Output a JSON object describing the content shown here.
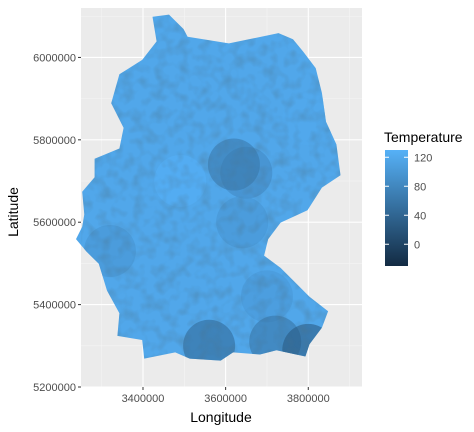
{
  "chart_data": {
    "type": "heatmap",
    "subtype": "raster map",
    "title": "",
    "xlabel": "Longitude",
    "ylabel": "Latitude",
    "xlim": [
      3250000,
      3930000
    ],
    "ylim": [
      5200000,
      6120000
    ],
    "x_ticks": [
      3400000,
      3600000,
      3800000
    ],
    "x_tick_labels": [
      "3400000",
      "3600000",
      "3800000"
    ],
    "y_ticks": [
      5200000,
      5400000,
      5600000,
      5800000,
      6000000
    ],
    "y_tick_labels": [
      "5200000",
      "5400000",
      "5600000",
      "5800000",
      "6000000"
    ],
    "grid": true,
    "panel_background": "#ebebeb",
    "region_outline": [
      [
        3423000,
        6099000
      ],
      [
        3463000,
        6104000
      ],
      [
        3498000,
        6069000
      ],
      [
        3508000,
        6050000
      ],
      [
        3608000,
        6034000
      ],
      [
        3728000,
        6059000
      ],
      [
        3763000,
        6044000
      ],
      [
        3788000,
        6014000
      ],
      [
        3818000,
        5974000
      ],
      [
        3833000,
        5914000
      ],
      [
        3843000,
        5844000
      ],
      [
        3868000,
        5789000
      ],
      [
        3878000,
        5714000
      ],
      [
        3833000,
        5684000
      ],
      [
        3798000,
        5629000
      ],
      [
        3733000,
        5599000
      ],
      [
        3703000,
        5559000
      ],
      [
        3693000,
        5519000
      ],
      [
        3733000,
        5489000
      ],
      [
        3763000,
        5459000
      ],
      [
        3803000,
        5419000
      ],
      [
        3848000,
        5384000
      ],
      [
        3833000,
        5344000
      ],
      [
        3803000,
        5304000
      ],
      [
        3793000,
        5274000
      ],
      [
        3723000,
        5289000
      ],
      [
        3683000,
        5279000
      ],
      [
        3618000,
        5284000
      ],
      [
        3588000,
        5264000
      ],
      [
        3513000,
        5269000
      ],
      [
        3478000,
        5284000
      ],
      [
        3403000,
        5269000
      ],
      [
        3398000,
        5314000
      ],
      [
        3338000,
        5324000
      ],
      [
        3343000,
        5379000
      ],
      [
        3313000,
        5434000
      ],
      [
        3293000,
        5499000
      ],
      [
        3263000,
        5529000
      ],
      [
        3238000,
        5559000
      ],
      [
        3253000,
        5589000
      ],
      [
        3258000,
        5619000
      ],
      [
        3253000,
        5674000
      ],
      [
        3283000,
        5709000
      ],
      [
        3283000,
        5754000
      ],
      [
        3343000,
        5779000
      ],
      [
        3353000,
        5829000
      ],
      [
        3323000,
        5889000
      ],
      [
        3343000,
        5959000
      ],
      [
        3398000,
        5994000
      ],
      [
        3433000,
        6039000
      ]
    ],
    "value_surface": [
      {
        "x": 3490000,
        "y": 5700000,
        "value": 132
      },
      {
        "x": 3800000,
        "y": 5850000,
        "value": 120
      },
      {
        "x": 3650000,
        "y": 5720000,
        "value": 80
      },
      {
        "x": 3620000,
        "y": 5740000,
        "value": 60
      },
      {
        "x": 3640000,
        "y": 5600000,
        "value": 95
      },
      {
        "x": 3700000,
        "y": 5420000,
        "value": 100
      },
      {
        "x": 3720000,
        "y": 5310000,
        "value": 55
      },
      {
        "x": 3560000,
        "y": 5300000,
        "value": 40
      },
      {
        "x": 3800000,
        "y": 5290000,
        "value": 20
      },
      {
        "x": 3320000,
        "y": 5530000,
        "value": 95
      }
    ],
    "legend": {
      "title": "Temperature",
      "placement": "right",
      "ticks": [
        120,
        80,
        40,
        0
      ],
      "tick_labels": [
        "120",
        "80",
        "40",
        "0"
      ],
      "range": [
        -30,
        130
      ],
      "low_color": "#132b43",
      "high_color": "#56b1f7"
    }
  }
}
